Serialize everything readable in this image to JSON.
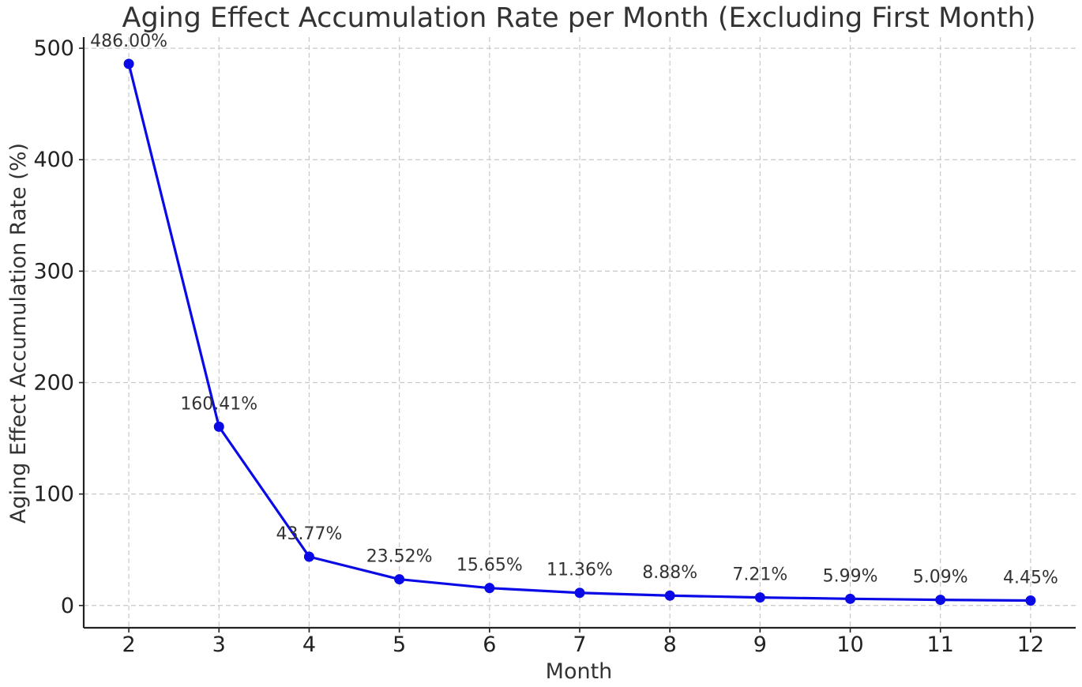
{
  "chart_data": {
    "type": "line",
    "title": "Aging Effect Accumulation Rate per Month (Excluding First Month)",
    "xlabel": "Month",
    "ylabel": "Aging Effect Accumulation Rate (%)",
    "x": [
      2,
      3,
      4,
      5,
      6,
      7,
      8,
      9,
      10,
      11,
      12
    ],
    "xlim": [
      1.5,
      12.5
    ],
    "ylim": [
      -20,
      510
    ],
    "yticks": [
      0,
      100,
      200,
      300,
      400,
      500
    ],
    "grid": true,
    "series": [
      {
        "values": [
          486.0,
          160.41,
          43.77,
          23.52,
          15.65,
          11.36,
          8.88,
          7.21,
          5.99,
          5.09,
          4.45
        ],
        "labels": [
          "486.00%",
          "160.41%",
          "43.77%",
          "23.52%",
          "15.65%",
          "11.36%",
          "8.88%",
          "7.21%",
          "5.99%",
          "5.09%",
          "4.45%"
        ],
        "color": "#0a0ae6",
        "marker": "circle"
      }
    ]
  }
}
